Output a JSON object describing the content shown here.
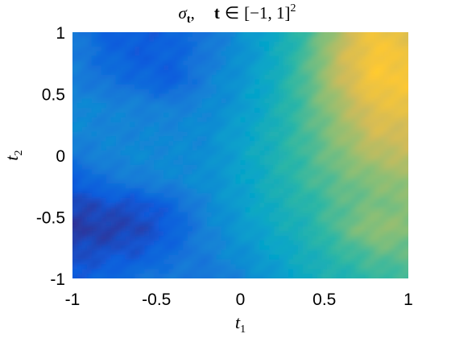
{
  "chart_data": {
    "type": "heatmap",
    "title": {
      "symbol": "σ",
      "symbol_subscript": "t",
      "separator": ",",
      "variable": "t",
      "relation": "∈",
      "domain": "[−1, 1]",
      "exponent": "2"
    },
    "xlabel": {
      "base": "t",
      "subscript": "1"
    },
    "ylabel": {
      "base": "t",
      "subscript": "2"
    },
    "xlim": [
      -1,
      1
    ],
    "ylim": [
      -1,
      1
    ],
    "xticks": [
      -1,
      -0.5,
      0,
      0.5,
      1
    ],
    "xtick_labels": [
      "-1",
      "-0.5",
      "0",
      "0.5",
      "1"
    ],
    "yticks": [
      -1,
      -0.5,
      0,
      0.5,
      1
    ],
    "ytick_labels": [
      "-1",
      "-0.5",
      "0",
      "0.5",
      "1"
    ],
    "colormap": "parula",
    "colormap_stops": [
      "#352a87",
      "#0f5cdd",
      "#1481d6",
      "#06a4ca",
      "#2eb7a4",
      "#87bf77",
      "#d1bb59",
      "#fec832",
      "#f9fb0e"
    ],
    "grid_x": [
      -1,
      -0.8,
      -0.6,
      -0.4,
      -0.2,
      0,
      0.2,
      0.4,
      0.6,
      0.8,
      1
    ],
    "grid_y": [
      1,
      0.8,
      0.6,
      0.4,
      0.2,
      0,
      -0.2,
      -0.4,
      -0.6,
      -0.8,
      -1
    ],
    "values": [
      [
        0.24,
        0.14,
        0.13,
        0.15,
        0.2,
        0.3,
        0.4,
        0.52,
        0.7,
        0.85,
        0.78
      ],
      [
        0.23,
        0.17,
        0.13,
        0.15,
        0.22,
        0.3,
        0.4,
        0.55,
        0.74,
        0.86,
        0.84
      ],
      [
        0.24,
        0.2,
        0.17,
        0.13,
        0.25,
        0.32,
        0.42,
        0.56,
        0.73,
        0.86,
        0.85
      ],
      [
        0.28,
        0.26,
        0.25,
        0.24,
        0.27,
        0.33,
        0.43,
        0.55,
        0.68,
        0.8,
        0.82
      ],
      [
        0.27,
        0.26,
        0.26,
        0.27,
        0.29,
        0.36,
        0.44,
        0.54,
        0.65,
        0.76,
        0.76
      ],
      [
        0.22,
        0.26,
        0.28,
        0.28,
        0.29,
        0.37,
        0.45,
        0.53,
        0.62,
        0.7,
        0.72
      ],
      [
        0.12,
        0.2,
        0.24,
        0.27,
        0.3,
        0.36,
        0.44,
        0.52,
        0.58,
        0.62,
        0.66
      ],
      [
        0.07,
        0.09,
        0.1,
        0.16,
        0.27,
        0.35,
        0.43,
        0.48,
        0.56,
        0.6,
        0.62
      ],
      [
        0.04,
        0.05,
        0.07,
        0.14,
        0.25,
        0.33,
        0.4,
        0.46,
        0.56,
        0.65,
        0.62
      ],
      [
        0.08,
        0.1,
        0.12,
        0.18,
        0.24,
        0.3,
        0.37,
        0.43,
        0.5,
        0.56,
        0.58
      ],
      [
        0.12,
        0.16,
        0.2,
        0.23,
        0.2,
        0.26,
        0.33,
        0.42,
        0.46,
        0.5,
        0.52
      ]
    ]
  }
}
